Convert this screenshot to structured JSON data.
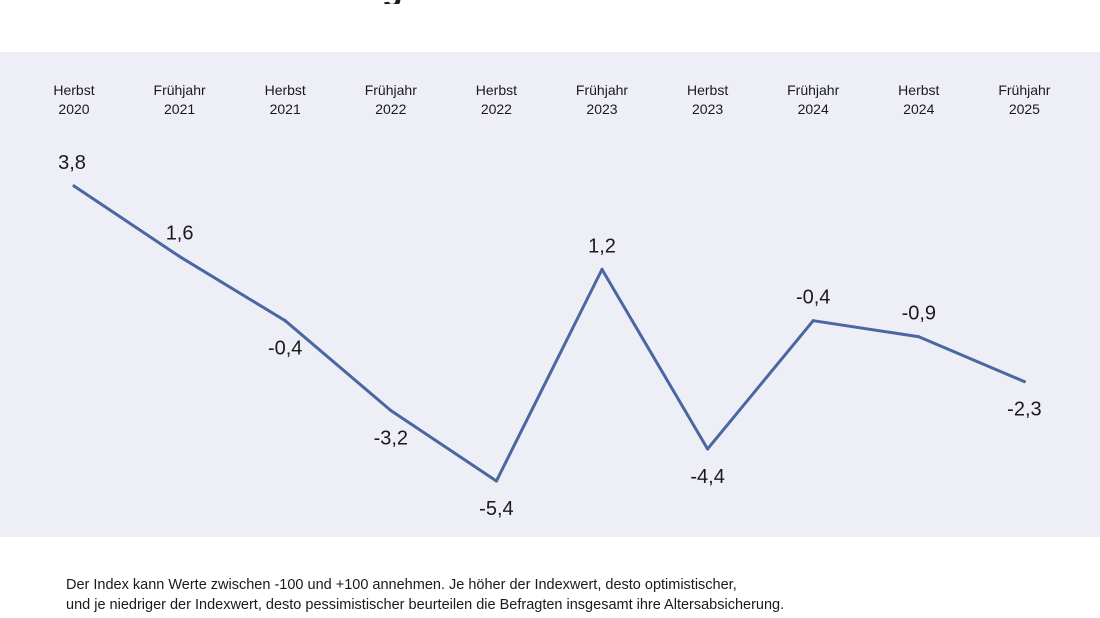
{
  "heading_fragment": "g",
  "chart_data": {
    "type": "line",
    "categories": [
      [
        "Herbst",
        "2020"
      ],
      [
        "Frühjahr",
        "2021"
      ],
      [
        "Herbst",
        "2021"
      ],
      [
        "Frühjahr",
        "2022"
      ],
      [
        "Herbst",
        "2022"
      ],
      [
        "Frühjahr",
        "2023"
      ],
      [
        "Herbst",
        "2023"
      ],
      [
        "Frühjahr",
        "2024"
      ],
      [
        "Herbst",
        "2024"
      ],
      [
        "Frühjahr",
        "2025"
      ]
    ],
    "values": [
      3.8,
      1.6,
      -0.4,
      -3.2,
      -5.4,
      1.2,
      -4.4,
      -0.4,
      -0.9,
      -2.3
    ],
    "value_labels": [
      "3,8",
      "1,6",
      "-0,4",
      "-3,2",
      "-5,4",
      "1,2",
      "-4,4",
      "-0,4",
      "-0,9",
      "-2,3"
    ],
    "label_position": [
      "above",
      "above",
      "below",
      "below",
      "below",
      "above",
      "below",
      "above",
      "above",
      "below"
    ],
    "ylim": [
      -6,
      5
    ],
    "grid": false,
    "line_color": "#4a67a1",
    "background_color": "#eeeff6"
  },
  "footnote": {
    "line1": "Der Index kann Werte zwischen -100 und +100 annehmen. Je höher der Indexwert, desto optimistischer,",
    "line2": "und je niedriger der Indexwert, desto pessimistischer beurteilen die Befragten insgesamt ihre Altersabsicherung."
  }
}
